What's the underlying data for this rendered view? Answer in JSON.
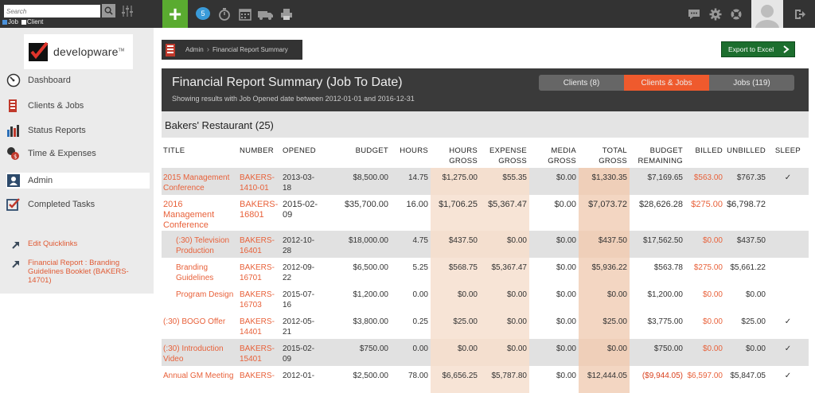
{
  "topbar": {
    "search_placeholder": "Search",
    "filters": [
      {
        "label": "Job",
        "checked": true
      },
      {
        "label": "Client",
        "checked": false
      }
    ],
    "plus_label": "+",
    "notification_count": "5",
    "accent_color": "#5aab30",
    "icons": [
      "search-icon",
      "sliders-icon",
      "chat-badge-icon",
      "stopwatch-icon",
      "calendar-icon",
      "truck-icon",
      "printer-icon",
      "speech-icon",
      "gear-icon",
      "lifebuoy-icon",
      "avatar",
      "logout-icon"
    ]
  },
  "sidebar": {
    "logo_text": "developware",
    "logo_mark": "TM",
    "items": [
      {
        "label": "Dashboard",
        "icon": "dashboard-icon"
      },
      {
        "label": "Clients & Jobs",
        "icon": "files-icon"
      },
      {
        "label": "Status Reports",
        "icon": "bar-chart-icon"
      },
      {
        "label": "Time & Expenses",
        "icon": "money-icon"
      },
      {
        "label": "Admin",
        "icon": "admin-icon"
      },
      {
        "label": "Completed Tasks",
        "icon": "checkbox-icon"
      }
    ],
    "quicklinks": [
      {
        "label": "Edit Quicklinks"
      },
      {
        "label": "Financial Report : Branding Guidelines Booklet (BAKERS-14701)"
      }
    ]
  },
  "breadcrumb": {
    "items": [
      "Admin",
      "Financial Report Summary"
    ]
  },
  "export_label": "Export to Excel",
  "report": {
    "title": "Financial Report Summary (Job To Date)",
    "subtitle": "Showing results with Job Opened date between 2012-01-01 and 2016-12-31",
    "tabs": [
      "Clients (8)",
      "Clients & Jobs",
      "Jobs (119)"
    ],
    "active_tab": 1,
    "client": "Bakers' Restaurant (25)"
  },
  "table": {
    "headers": [
      "TITLE",
      "NUMBER",
      "OPENED",
      "BUDGET",
      "HOURS",
      "HOURS GROSS",
      "EXPENSE GROSS",
      "MEDIA GROSS",
      "TOTAL GROSS",
      "BUDGET REMAINING",
      "BILLED",
      "UNBILLED",
      "SLEEP"
    ],
    "rows": [
      {
        "title": "2015 Management Conference",
        "number": "BAKERS-1410-01",
        "opened": "2013-03-18",
        "budget": "$8,500.00",
        "hours": "14.75",
        "hours_gross": "$1,275.00",
        "expense_gross": "$55.35",
        "media_gross": "$0.00",
        "total_gross": "$1,330.35",
        "budget_remaining": "$7,169.65",
        "billed": "$563.00",
        "unbilled": "$767.35",
        "sleep": "✓",
        "style": "grey",
        "indent": false
      },
      {
        "title": "2016 Management Conference",
        "number": "BAKERS-16801",
        "opened": "2015-02-09",
        "budget": "$35,700.00",
        "hours": "16.00",
        "hours_gross": "$1,706.25",
        "expense_gross": "$5,367.47",
        "media_gross": "$0.00",
        "total_gross": "$7,073.72",
        "budget_remaining": "$28,626.28",
        "billed": "$275.00",
        "unbilled": "$6,798.72",
        "sleep": "",
        "style": "white",
        "indent": false,
        "bold": true
      },
      {
        "title": "(:30) Television Production",
        "number": "BAKERS-16401",
        "opened": "2012-10-28",
        "budget": "$18,000.00",
        "hours": "4.75",
        "hours_gross": "$437.50",
        "expense_gross": "$0.00",
        "media_gross": "$0.00",
        "total_gross": "$437.50",
        "budget_remaining": "$17,562.50",
        "billed": "$0.00",
        "unbilled": "$437.50",
        "sleep": "",
        "style": "grey",
        "indent": true
      },
      {
        "title": "Branding Guidelines",
        "number": "BAKERS-16701",
        "opened": "2012-09-22",
        "budget": "$6,500.00",
        "hours": "5.25",
        "hours_gross": "$568.75",
        "expense_gross": "$5,367.47",
        "media_gross": "$0.00",
        "total_gross": "$5,936.22",
        "budget_remaining": "$563.78",
        "billed": "$275.00",
        "unbilled": "$5,661.22",
        "sleep": "",
        "style": "white",
        "indent": true
      },
      {
        "title": "Program Design",
        "number": "BAKERS-16703",
        "opened": "2015-07-16",
        "budget": "$1,200.00",
        "hours": "0.00",
        "hours_gross": "$0.00",
        "expense_gross": "$0.00",
        "media_gross": "$0.00",
        "total_gross": "$0.00",
        "budget_remaining": "$1,200.00",
        "billed": "$0.00",
        "unbilled": "$0.00",
        "sleep": "",
        "style": "white",
        "indent": true
      },
      {
        "title": "(:30) BOGO Offer",
        "number": "BAKERS-14401",
        "opened": "2012-05-21",
        "budget": "$3,800.00",
        "hours": "0.25",
        "hours_gross": "$25.00",
        "expense_gross": "$0.00",
        "media_gross": "$0.00",
        "total_gross": "$25.00",
        "budget_remaining": "$3,775.00",
        "billed": "$0.00",
        "unbilled": "$25.00",
        "sleep": "✓",
        "style": "white",
        "indent": false
      },
      {
        "title": "(:30) Introduction Video",
        "number": "BAKERS-15401",
        "opened": "2015-02-09",
        "budget": "$750.00",
        "hours": "0.00",
        "hours_gross": "$0.00",
        "expense_gross": "$0.00",
        "media_gross": "$0.00",
        "total_gross": "$0.00",
        "budget_remaining": "$750.00",
        "billed": "$0.00",
        "unbilled": "$0.00",
        "sleep": "✓",
        "style": "grey",
        "indent": false
      },
      {
        "title": "Annual GM Meeting",
        "number": "BAKERS-",
        "opened": "2012-01-",
        "budget": "$2,500.00",
        "hours": "78.00",
        "hours_gross": "$6,656.25",
        "expense_gross": "$5,787.80",
        "media_gross": "$0.00",
        "total_gross": "$12,444.05",
        "budget_remaining": "($9,944.05)",
        "billed": "$6,597.00",
        "unbilled": "$5,847.05",
        "sleep": "✓",
        "style": "white",
        "indent": false
      }
    ]
  }
}
